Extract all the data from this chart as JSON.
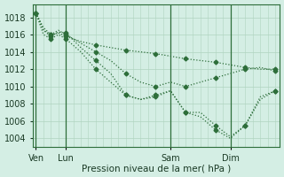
{
  "title": "",
  "xlabel": "Pression niveau de la mer( hPa )",
  "ylabel": "",
  "bg_color": "#d4eee4",
  "grid_color": "#b0d4c0",
  "line_color": "#2d6e3a",
  "ylim": [
    1003.0,
    1019.5
  ],
  "yticks": [
    1004,
    1006,
    1008,
    1010,
    1012,
    1014,
    1016,
    1018
  ],
  "xtick_labels": [
    "Ven",
    "Lun",
    "Sam",
    "Dim"
  ],
  "xtick_positions": [
    0,
    2,
    9,
    13
  ],
  "vlines": [
    0,
    2,
    9,
    13
  ],
  "series": [
    {
      "x": [
        0,
        0.5,
        1,
        1.5,
        2,
        3,
        4,
        5,
        6,
        7,
        8,
        9,
        10,
        11,
        12,
        13,
        14,
        15,
        16
      ],
      "y": [
        1018.5,
        1016.5,
        1016,
        1016.2,
        1015.8,
        1015.2,
        1014.8,
        1014.5,
        1014.2,
        1014.0,
        1013.8,
        1013.5,
        1013.2,
        1013.0,
        1012.8,
        1012.5,
        1012.2,
        1012.0,
        1012.0
      ]
    },
    {
      "x": [
        0,
        0.5,
        1,
        1.5,
        2,
        3,
        4,
        5,
        6,
        7,
        8,
        9,
        10,
        11,
        12,
        13,
        14,
        15,
        16
      ],
      "y": [
        1018.5,
        1016.8,
        1016,
        1016.5,
        1016.0,
        1015.0,
        1014.0,
        1013.0,
        1011.5,
        1010.5,
        1010.0,
        1010.5,
        1010.0,
        1010.5,
        1011.0,
        1011.5,
        1012.0,
        1012.2,
        1011.8
      ]
    },
    {
      "x": [
        0,
        0.5,
        1,
        1.5,
        2,
        3,
        4,
        5,
        6,
        7,
        8,
        9,
        10,
        11,
        12,
        13,
        14,
        15,
        16
      ],
      "y": [
        1018.5,
        1016.5,
        1015.8,
        1016.3,
        1016.2,
        1014.5,
        1013.0,
        1011.5,
        1009.0,
        1008.5,
        1009.0,
        1009.5,
        1007.0,
        1006.5,
        1005.0,
        1004.0,
        1005.5,
        1008.5,
        1009.5
      ]
    },
    {
      "x": [
        0,
        0.5,
        1,
        1.5,
        2,
        3,
        4,
        5,
        6,
        7,
        8,
        9,
        10,
        11,
        12,
        13,
        14,
        15,
        16
      ],
      "y": [
        1018.5,
        1016.0,
        1015.5,
        1016.0,
        1015.5,
        1014.0,
        1012.0,
        1010.5,
        1009.0,
        1008.5,
        1008.8,
        1009.5,
        1007.0,
        1007.0,
        1005.5,
        1004.2,
        1005.5,
        1008.8,
        1009.5
      ]
    }
  ]
}
